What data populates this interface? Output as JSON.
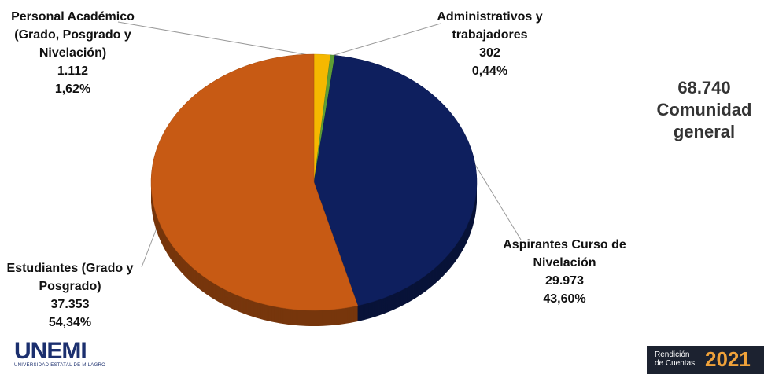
{
  "chart_data": {
    "type": "pie",
    "categories": [
      "Personal Académico (Grado, Posgrado y Nivelación)",
      "Administrativos y trabajadores",
      "Aspirantes Curso de Nivelación",
      "Estudiantes (Grado y Posgrado)"
    ],
    "values": [
      1112,
      302,
      29973,
      37353
    ],
    "value_labels": [
      "1.112",
      "302",
      "29.973",
      "37.353"
    ],
    "percentages": [
      1.62,
      0.44,
      43.6,
      54.34
    ],
    "percentage_labels": [
      "1,62%",
      "0,44%",
      "43,60%",
      "54,34%"
    ],
    "colors": [
      "#f5b800",
      "#5e9e35",
      "#0e1f5e",
      "#c75a14"
    ],
    "total": {
      "value": 68740,
      "label": "68.740"
    },
    "total_caption": "Comunidad general"
  },
  "footer": {
    "logo": "UNEMI",
    "logo_subtitle": "UNIVERSIDAD ESTATAL DE MILAGRO",
    "badge_text": "Rendición de Cuentas",
    "badge_year": "2021"
  }
}
